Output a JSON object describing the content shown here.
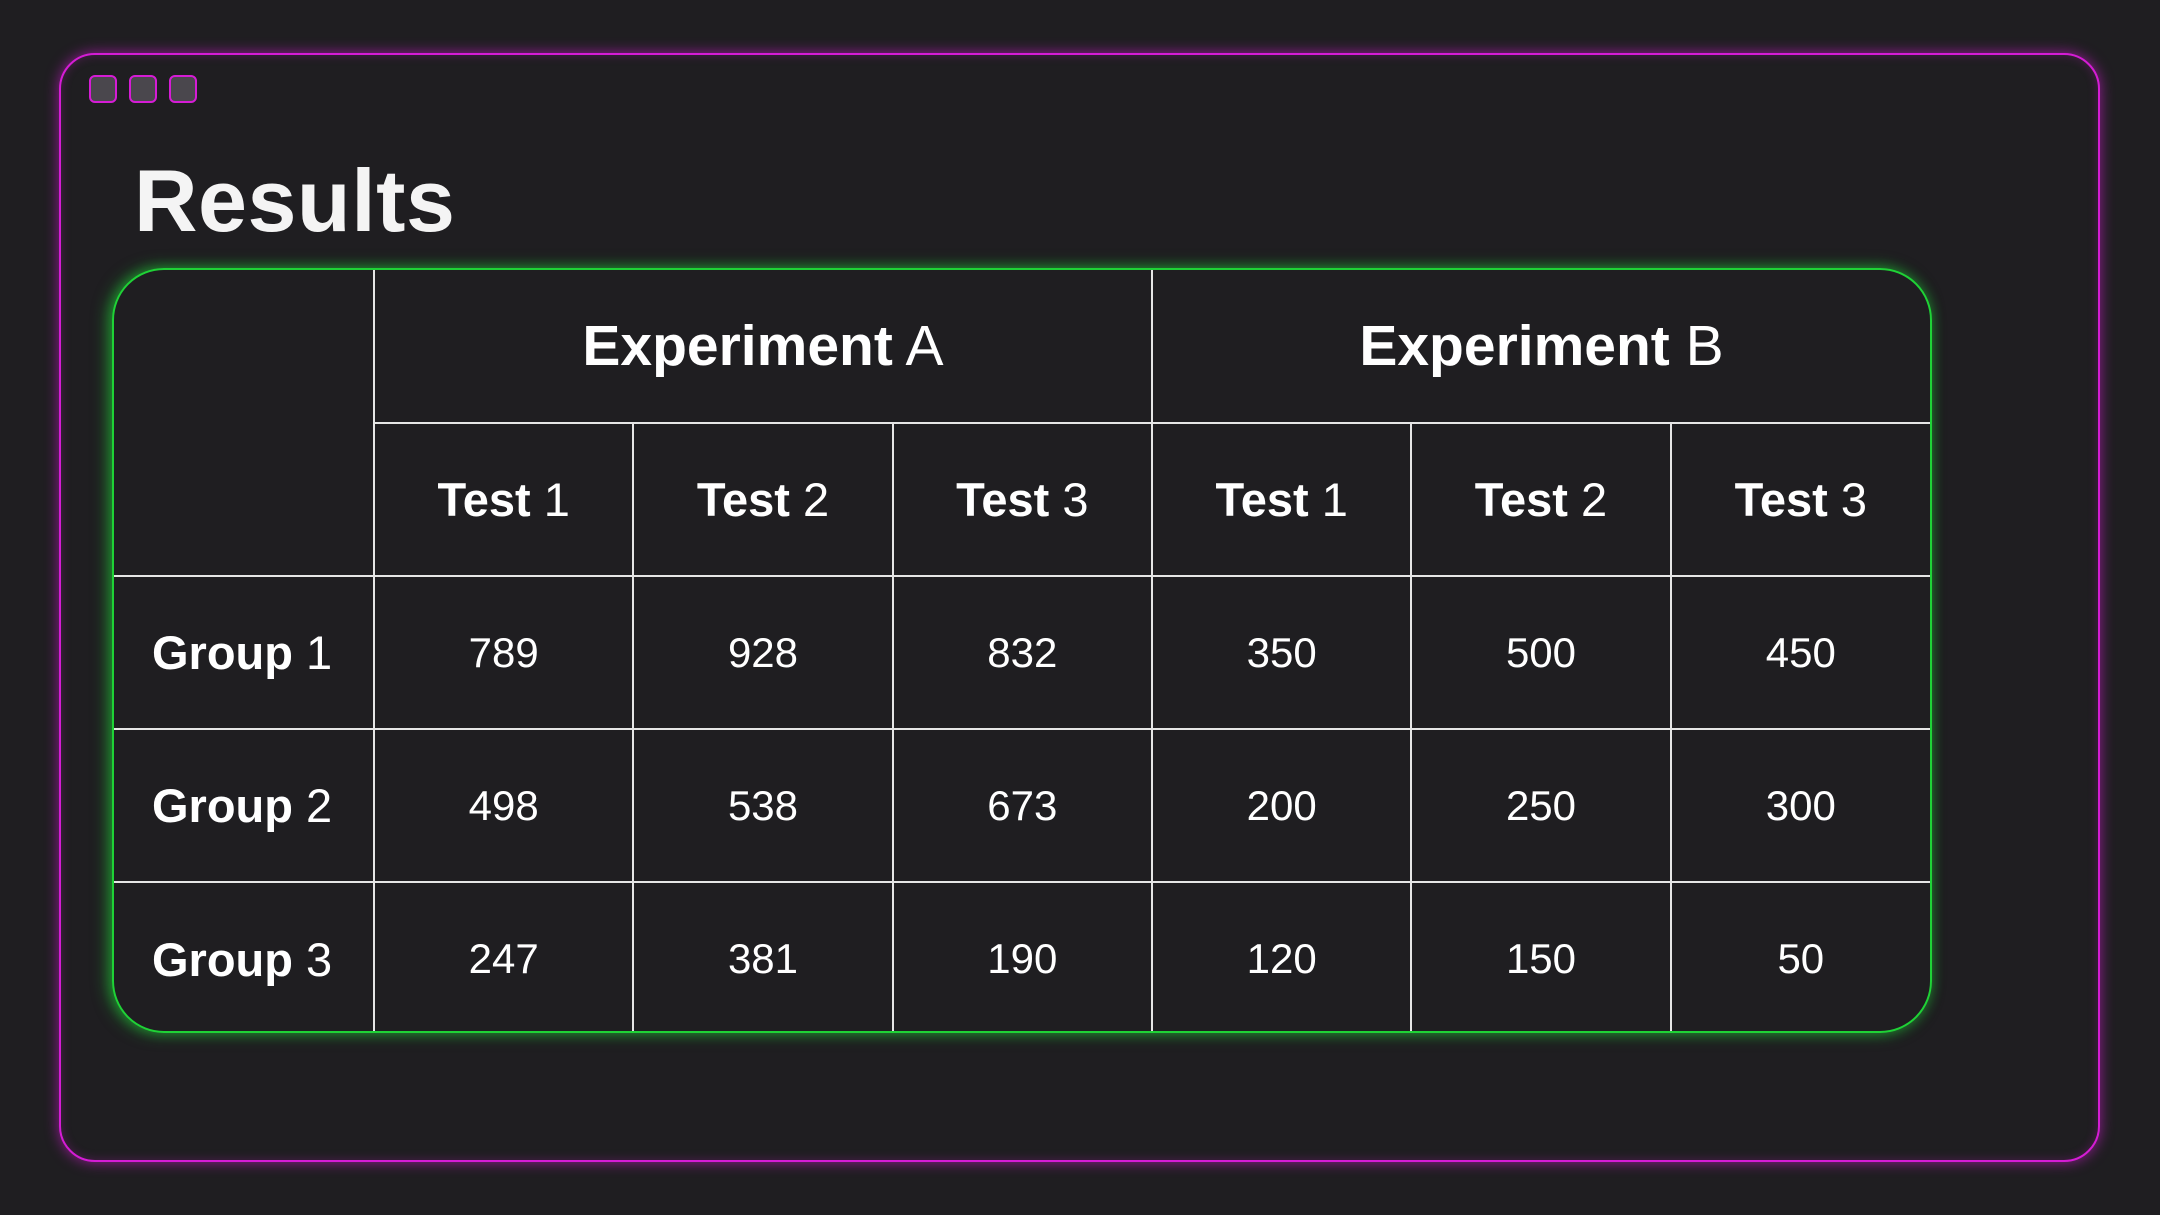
{
  "title": "Results",
  "window_dots": 3,
  "colors": {
    "background": "#1f1e21",
    "frame_border": "#d51cd5",
    "table_border": "#1fd236",
    "grid_lines": "#e6e6e6",
    "text": "#ffffff"
  },
  "table": {
    "experiments": [
      {
        "bold": "Experiment",
        "rest": "A"
      },
      {
        "bold": "Experiment",
        "rest": "B"
      }
    ],
    "tests": [
      {
        "bold": "Test",
        "rest": "1"
      },
      {
        "bold": "Test",
        "rest": "2"
      },
      {
        "bold": "Test",
        "rest": "3"
      },
      {
        "bold": "Test",
        "rest": "1"
      },
      {
        "bold": "Test",
        "rest": "2"
      },
      {
        "bold": "Test",
        "rest": "3"
      }
    ],
    "rows": [
      {
        "group_bold": "Group",
        "group_rest": "1",
        "values": [
          "789",
          "928",
          "832",
          "350",
          "500",
          "450"
        ]
      },
      {
        "group_bold": "Group",
        "group_rest": "2",
        "values": [
          "498",
          "538",
          "673",
          "200",
          "250",
          "300"
        ]
      },
      {
        "group_bold": "Group",
        "group_rest": "3",
        "values": [
          "247",
          "381",
          "190",
          "120",
          "150",
          "50"
        ]
      }
    ]
  }
}
